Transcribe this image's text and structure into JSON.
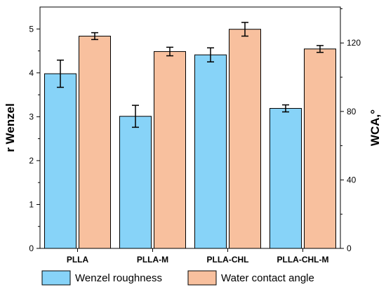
{
  "chart_data": {
    "type": "bar",
    "categories": [
      "PLLA",
      "PLLA-M",
      "PLLA-CHL",
      "PLLA-CHL-M"
    ],
    "series": [
      {
        "name": "Wenzel roughness",
        "axis": "left",
        "color": "#87d3f8",
        "values": [
          3.98,
          3.01,
          4.41,
          3.19
        ],
        "errors": [
          0.31,
          0.25,
          0.16,
          0.08
        ]
      },
      {
        "name": "Water contact angle",
        "axis": "right",
        "color": "#f8c09e",
        "values": [
          124,
          115,
          128,
          116.5
        ],
        "errors": [
          2,
          2.5,
          4,
          2
        ]
      }
    ],
    "ylabel": "r Wenzel",
    "y2label": "WCA,°",
    "ylim": [
      0,
      5.5
    ],
    "y2lim": [
      0,
      141
    ],
    "yticks": [
      "0",
      "1",
      "2",
      "3",
      "4",
      "5"
    ],
    "y2ticks": [
      "0",
      "40",
      "80",
      "120"
    ],
    "legend": "bottom",
    "grid": false
  }
}
